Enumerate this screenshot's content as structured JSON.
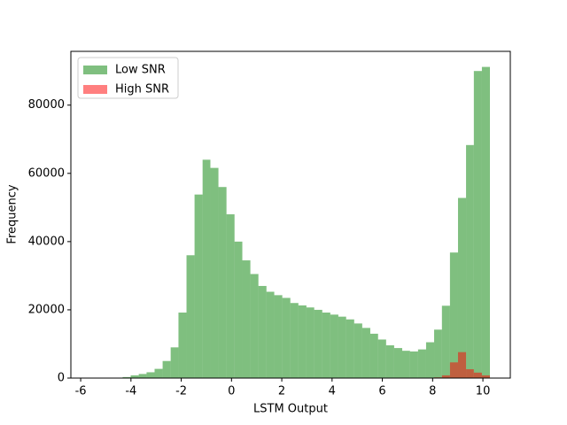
{
  "chart_data": {
    "type": "histogram",
    "xlabel": "LSTM Output",
    "ylabel": "Frequency",
    "bins": [
      -5.6,
      -5.28,
      -4.96,
      -4.65,
      -4.33,
      -4.01,
      -3.69,
      -3.38,
      -3.06,
      -2.74,
      -2.42,
      -2.11,
      -1.79,
      -1.47,
      -1.15,
      -0.84,
      -0.52,
      -0.2,
      0.12,
      0.43,
      0.75,
      1.07,
      1.39,
      1.7,
      2.02,
      2.34,
      2.66,
      2.98,
      3.29,
      3.61,
      3.93,
      4.25,
      4.56,
      4.88,
      5.2,
      5.52,
      5.83,
      6.15,
      6.47,
      6.79,
      7.1,
      7.42,
      7.74,
      8.06,
      8.37,
      8.69,
      9.01,
      9.33,
      9.64,
      9.96,
      10.28
    ],
    "series": [
      {
        "name": "Low SNR",
        "color": "#008000",
        "alpha": 0.5,
        "values": [
          5,
          10,
          50,
          120,
          300,
          800,
          1200,
          1700,
          2700,
          5000,
          9000,
          19200,
          36000,
          53800,
          64000,
          61600,
          56000,
          48000,
          40000,
          34500,
          30500,
          27000,
          25300,
          24300,
          23500,
          22000,
          21300,
          20700,
          20000,
          19200,
          18600,
          18000,
          17200,
          16000,
          14700,
          13000,
          11300,
          9600,
          8800,
          8000,
          7800,
          8400,
          10500,
          14200,
          21200,
          36800,
          52800,
          68300,
          90000,
          91200
        ]
      },
      {
        "name": "High SNR",
        "color": "#ff0000",
        "alpha": 0.5,
        "values": [
          0,
          0,
          0,
          0,
          0,
          0,
          0,
          0,
          0,
          0,
          0,
          0,
          0,
          0,
          0,
          0,
          0,
          0,
          0,
          0,
          0,
          0,
          0,
          0,
          0,
          0,
          0,
          0,
          0,
          0,
          0,
          0,
          0,
          0,
          0,
          0,
          0,
          0,
          0,
          0,
          0,
          0,
          0,
          200,
          800,
          4600,
          7600,
          2600,
          1600,
          800
        ]
      }
    ],
    "xlim": [
      -6.39,
      11.09
    ],
    "xticks": [
      -6,
      -4,
      -2,
      0,
      2,
      4,
      6,
      8,
      10
    ],
    "ylim": [
      0,
      95760
    ],
    "yticks": [
      0,
      20000,
      40000,
      60000,
      80000
    ],
    "legend": "upper left"
  }
}
